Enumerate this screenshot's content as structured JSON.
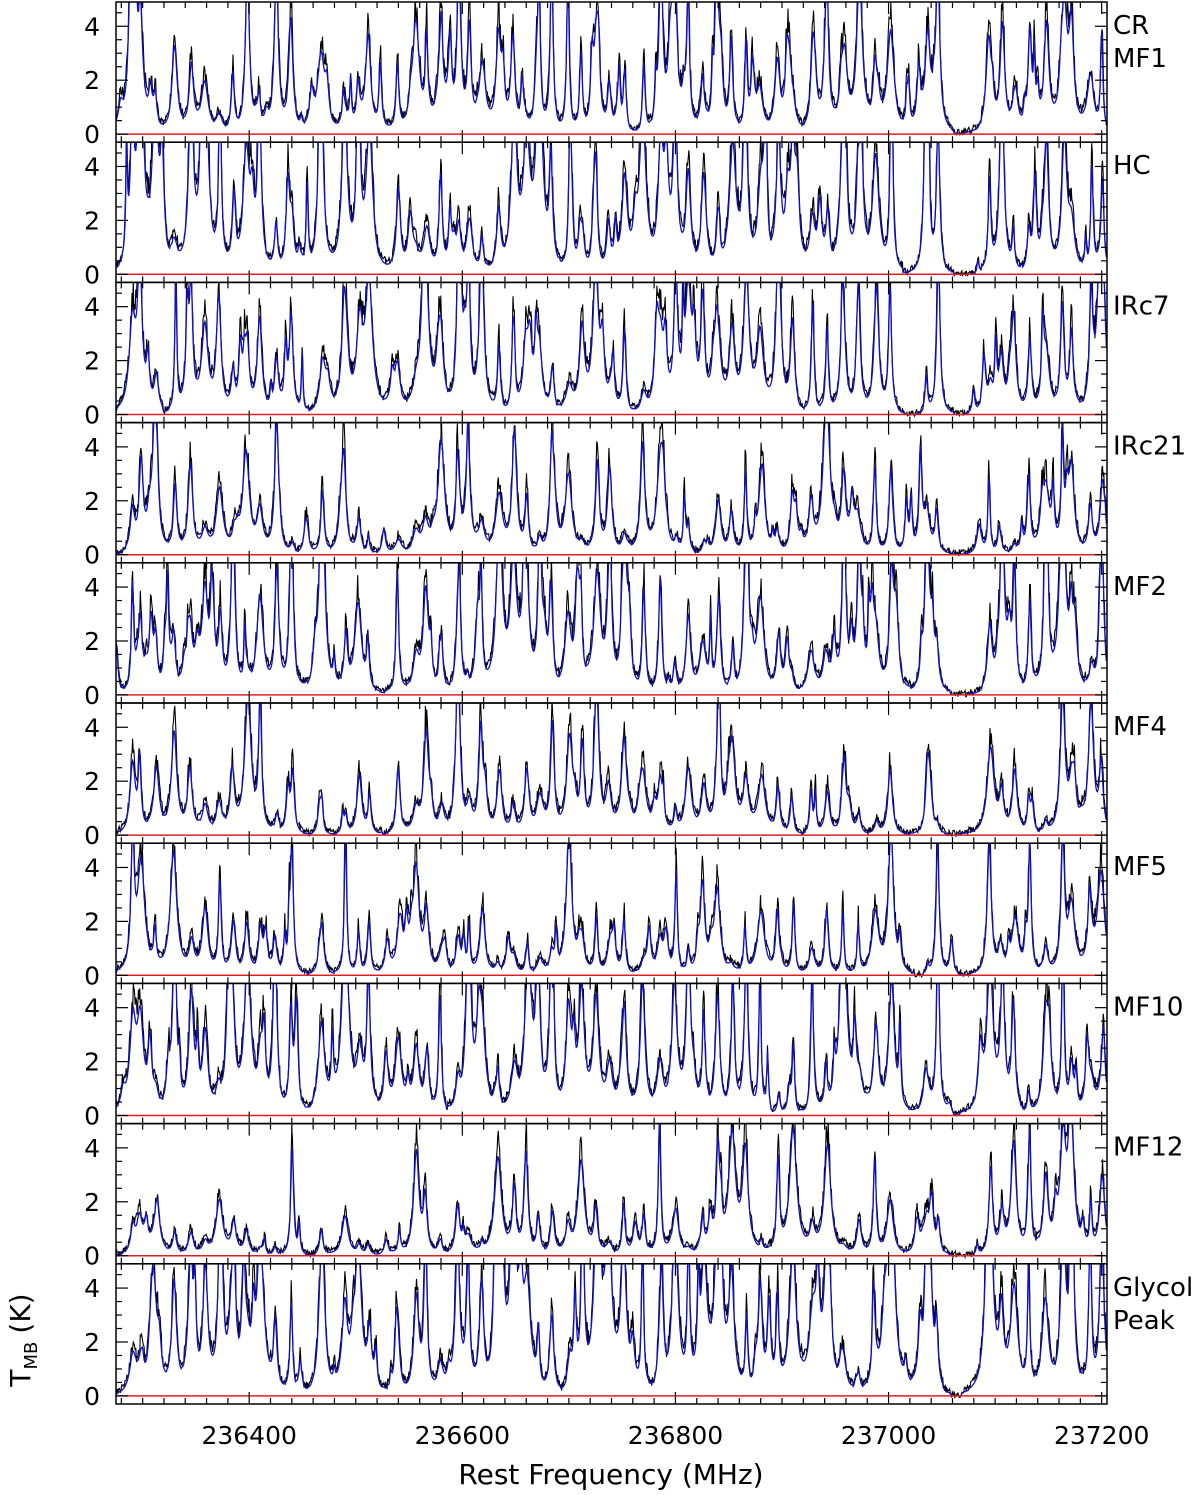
{
  "chart_data": {
    "type": "line",
    "xlabel": "Rest Frequency (MHz)",
    "ylabel_main": "T",
    "ylabel_sub": "MB",
    "ylabel_unit": "(K)",
    "xlim": [
      236275,
      237205
    ],
    "ylim": [
      -0.3,
      4.9
    ],
    "x_ticks": [
      236400,
      236600,
      236800,
      237000,
      237200
    ],
    "x_tick_labels": [
      "236400",
      "236600",
      "236800",
      "237000",
      "237200"
    ],
    "y_ticks": [
      0,
      2,
      4
    ],
    "y_tick_labels": [
      "0",
      "2",
      "4"
    ],
    "grid": false,
    "baseline": 0,
    "colors": {
      "observed": "#000000",
      "model": "#1010c8",
      "baseline": "#e02020"
    },
    "series_note_colors": [
      "black",
      "blue",
      "red"
    ],
    "panels": [
      {
        "label_lines": [
          "CR",
          "MF1"
        ],
        "density": 1.6,
        "level": 1.0
      },
      {
        "label_lines": [
          "HC"
        ],
        "density": 1.0,
        "level": 1.6
      },
      {
        "label_lines": [
          "IRc7"
        ],
        "density": 1.0,
        "level": 1.2
      },
      {
        "label_lines": [
          "IRc21"
        ],
        "density": 1.0,
        "level": 0.8
      },
      {
        "label_lines": [
          "MF2"
        ],
        "density": 1.5,
        "level": 1.1
      },
      {
        "label_lines": [
          "MF4"
        ],
        "density": 0.7,
        "level": 0.6
      },
      {
        "label_lines": [
          "MF5"
        ],
        "density": 0.7,
        "level": 0.6
      },
      {
        "label_lines": [
          "MF10"
        ],
        "density": 1.1,
        "level": 1.2
      },
      {
        "label_lines": [
          "MF12"
        ],
        "density": 0.6,
        "level": 0.5
      },
      {
        "label_lines": [
          "Glycol",
          "Peak"
        ],
        "density": 1.3,
        "level": 1.4
      }
    ],
    "line_centers_mhz": [
      236290,
      236298,
      236312,
      236330,
      236345,
      236358,
      236372,
      236385,
      236398,
      236410,
      236425,
      236440,
      236468,
      236490,
      236503,
      236512,
      236540,
      236556,
      236566,
      236580,
      236596,
      236606,
      236618,
      236634,
      236648,
      236660,
      236672,
      236684,
      236700,
      236712,
      236726,
      236738,
      236752,
      236770,
      236786,
      236800,
      236812,
      236826,
      236840,
      236853,
      236866,
      236880,
      236896,
      236910,
      236928,
      236942,
      236958,
      236972,
      236988,
      237002,
      237036,
      237046,
      237095,
      237106,
      237118,
      237132,
      237148,
      237164,
      237172,
      237190,
      237200
    ]
  }
}
